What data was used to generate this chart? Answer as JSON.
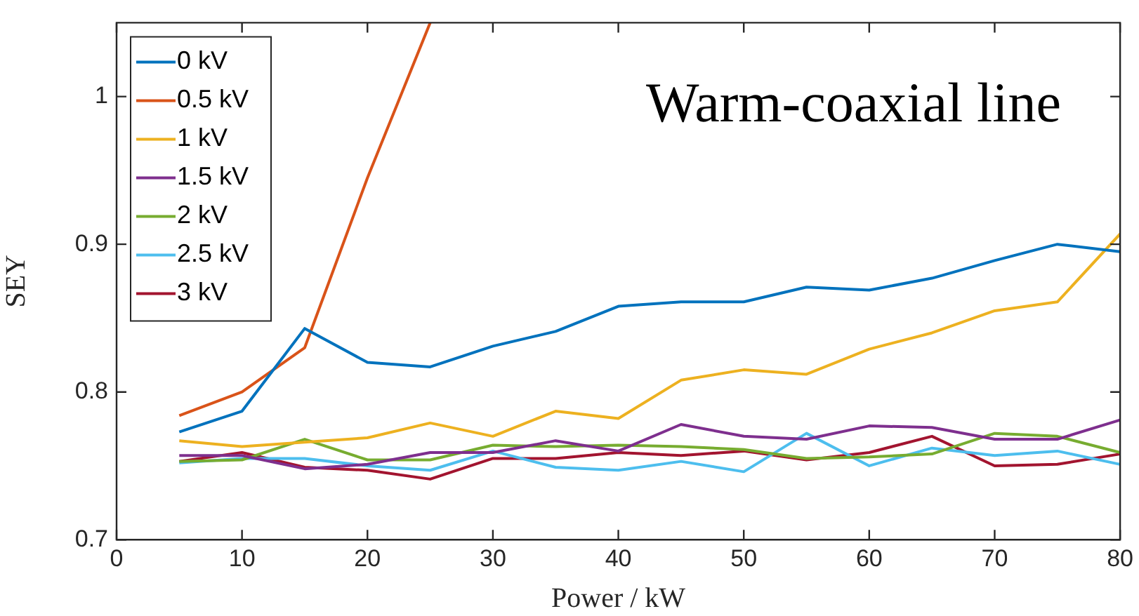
{
  "chart_data": {
    "type": "line",
    "xlabel": "Power / kW",
    "ylabel": "SEY",
    "annotations": [
      "Warm-coaxial line"
    ],
    "x": [
      5,
      10,
      15,
      20,
      25,
      30,
      35,
      40,
      45,
      50,
      55,
      60,
      65,
      70,
      75,
      80
    ],
    "series": [
      {
        "name": "0 kV",
        "color": "#0072bd",
        "values": [
          0.773,
          0.787,
          0.843,
          0.82,
          0.817,
          0.831,
          0.841,
          0.858,
          0.861,
          0.861,
          0.871,
          0.869,
          0.877,
          0.889,
          0.9,
          0.895
        ]
      },
      {
        "name": "0.5 kV",
        "color": "#d95319",
        "x": [
          5,
          10,
          15,
          20,
          25
        ],
        "values": [
          0.784,
          0.8,
          0.83,
          0.945,
          1.05
        ]
      },
      {
        "name": "1 kV",
        "color": "#edb120",
        "values": [
          0.767,
          0.763,
          0.766,
          0.769,
          0.779,
          0.77,
          0.787,
          0.782,
          0.808,
          0.815,
          0.812,
          0.829,
          0.84,
          0.855,
          0.861,
          0.907
        ]
      },
      {
        "name": "1.5 kV",
        "color": "#7e2f8e",
        "values": [
          0.757,
          0.757,
          0.748,
          0.751,
          0.759,
          0.759,
          0.767,
          0.76,
          0.778,
          0.77,
          0.768,
          0.777,
          0.776,
          0.768,
          0.768,
          0.781
        ]
      },
      {
        "name": "2 kV",
        "color": "#77ac30",
        "values": [
          0.753,
          0.754,
          0.768,
          0.754,
          0.754,
          0.764,
          0.763,
          0.764,
          0.763,
          0.761,
          0.755,
          0.756,
          0.758,
          0.772,
          0.77,
          0.759
        ]
      },
      {
        "name": "2.5 kV",
        "color": "#4dbeee",
        "values": [
          0.752,
          0.755,
          0.755,
          0.75,
          0.747,
          0.76,
          0.749,
          0.747,
          0.753,
          0.746,
          0.772,
          0.75,
          0.762,
          0.757,
          0.76,
          0.751
        ]
      },
      {
        "name": "3 kV",
        "color": "#a2142f",
        "values": [
          0.753,
          0.759,
          0.749,
          0.747,
          0.741,
          0.755,
          0.755,
          0.759,
          0.757,
          0.76,
          0.754,
          0.759,
          0.77,
          0.75,
          0.751,
          0.758
        ]
      }
    ],
    "xlim": [
      0,
      80
    ],
    "xticks": [
      0,
      10,
      20,
      30,
      40,
      50,
      60,
      70,
      80
    ],
    "ylim": [
      0.7,
      1.05
    ],
    "yticks": [
      0.7,
      0.8,
      0.9,
      1
    ],
    "grid": false,
    "legend": "top left",
    "marker": "none",
    "line_style": "solid"
  }
}
